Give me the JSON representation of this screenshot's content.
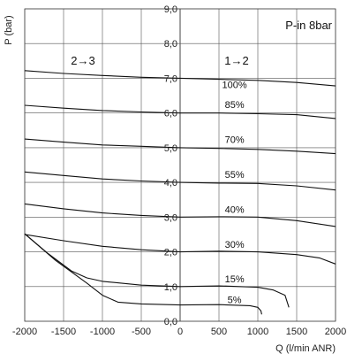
{
  "chart_data": {
    "type": "line",
    "title": "",
    "xlabel": "Q (l/min ANR)",
    "ylabel": "P (bar)",
    "xlim": [
      -2000,
      2000
    ],
    "ylim": [
      0,
      9
    ],
    "xticks": [
      -2000,
      -1500,
      -1000,
      -500,
      0,
      500,
      1000,
      1500,
      2000
    ],
    "xtick_labels": [
      "-2000",
      "-1500",
      "-1000",
      "-500",
      "0",
      "500",
      "1000",
      "1500",
      "2000"
    ],
    "yticks": [
      0,
      1,
      2,
      3,
      4,
      5,
      6,
      7,
      8,
      9
    ],
    "ytick_labels": [
      "0,0",
      "1,0",
      "2,0",
      "3,0",
      "4,0",
      "5,0",
      "6,0",
      "7,0",
      "8,0",
      "9,0"
    ],
    "grid": true,
    "annotations": {
      "pressure_in": "P-in 8bar",
      "region_left": "2→3",
      "region_right": "1→2"
    },
    "series": [
      {
        "name": "100%",
        "label_at": [
          700,
          6.72
        ],
        "points": [
          [
            -2000,
            7.22
          ],
          [
            -1500,
            7.14
          ],
          [
            -1000,
            7.08
          ],
          [
            -500,
            7.03
          ],
          [
            0,
            7.0
          ],
          [
            500,
            6.97
          ],
          [
            1000,
            6.94
          ],
          [
            1500,
            6.88
          ],
          [
            2000,
            6.78
          ]
        ]
      },
      {
        "name": "85%",
        "label_at": [
          700,
          6.15
        ],
        "points": [
          [
            -2000,
            6.22
          ],
          [
            -1500,
            6.14
          ],
          [
            -1000,
            6.07
          ],
          [
            -500,
            6.03
          ],
          [
            0,
            6.0
          ],
          [
            500,
            6.0
          ],
          [
            1000,
            5.98
          ],
          [
            1500,
            5.95
          ],
          [
            2000,
            5.84
          ]
        ]
      },
      {
        "name": "70%",
        "label_at": [
          700,
          5.14
        ],
        "points": [
          [
            -2000,
            5.25
          ],
          [
            -1500,
            5.16
          ],
          [
            -1000,
            5.08
          ],
          [
            -500,
            5.04
          ],
          [
            0,
            5.0
          ],
          [
            500,
            4.98
          ],
          [
            1000,
            4.95
          ],
          [
            1500,
            4.9
          ],
          [
            2000,
            4.83
          ]
        ]
      },
      {
        "name": "55%",
        "label_at": [
          700,
          4.13
        ],
        "points": [
          [
            -2000,
            4.3
          ],
          [
            -1500,
            4.2
          ],
          [
            -1000,
            4.1
          ],
          [
            -500,
            4.04
          ],
          [
            0,
            4.0
          ],
          [
            500,
            3.98
          ],
          [
            1000,
            3.97
          ],
          [
            1500,
            3.9
          ],
          [
            2000,
            3.78
          ]
        ]
      },
      {
        "name": "40%",
        "label_at": [
          700,
          3.12
        ],
        "points": [
          [
            -2000,
            3.38
          ],
          [
            -1500,
            3.24
          ],
          [
            -1000,
            3.12
          ],
          [
            -500,
            3.05
          ],
          [
            0,
            3.0
          ],
          [
            500,
            3.01
          ],
          [
            1000,
            3.0
          ],
          [
            1500,
            2.9
          ],
          [
            2000,
            2.73
          ]
        ]
      },
      {
        "name": "30%",
        "label_at": [
          700,
          2.12
        ],
        "points": [
          [
            -2000,
            2.5
          ],
          [
            -1500,
            2.32
          ],
          [
            -1000,
            2.16
          ],
          [
            -500,
            2.06
          ],
          [
            0,
            2.0
          ],
          [
            500,
            2.02
          ],
          [
            1000,
            2.0
          ],
          [
            1500,
            1.92
          ],
          [
            1800,
            1.82
          ],
          [
            2000,
            1.65
          ]
        ]
      },
      {
        "name": "15%",
        "label_at": [
          700,
          1.12
        ],
        "points": [
          [
            -2000,
            2.52
          ],
          [
            -1700,
            1.95
          ],
          [
            -1400,
            1.45
          ],
          [
            -1200,
            1.25
          ],
          [
            -1000,
            1.15
          ],
          [
            -500,
            1.04
          ],
          [
            0,
            1.0
          ],
          [
            500,
            1.02
          ],
          [
            1000,
            0.98
          ],
          [
            1200,
            0.9
          ],
          [
            1350,
            0.75
          ],
          [
            1400,
            0.4
          ]
        ]
      },
      {
        "name": "5%",
        "label_at": [
          700,
          0.52
        ],
        "points": [
          [
            -2000,
            2.52
          ],
          [
            -1600,
            1.75
          ],
          [
            -1200,
            1.1
          ],
          [
            -1000,
            0.75
          ],
          [
            -800,
            0.55
          ],
          [
            -500,
            0.5
          ],
          [
            0,
            0.47
          ],
          [
            500,
            0.48
          ],
          [
            900,
            0.45
          ],
          [
            1000,
            0.4
          ],
          [
            1040,
            0.3
          ],
          [
            1050,
            0.2
          ]
        ]
      }
    ]
  }
}
